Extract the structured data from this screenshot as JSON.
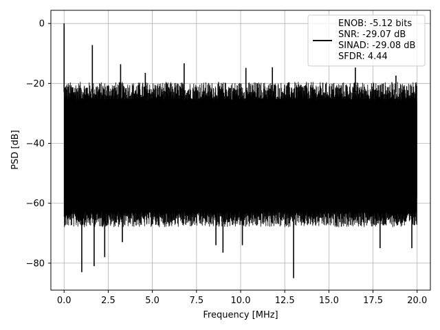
{
  "chart_data": {
    "type": "line",
    "title": "",
    "xlabel": "Frequency [MHz]",
    "ylabel": "PSD [dB]",
    "xlim": [
      -0.75,
      20.75
    ],
    "ylim": [
      -89.0,
      4.4
    ],
    "xticks": [
      0.0,
      2.5,
      5.0,
      7.5,
      10.0,
      12.5,
      15.0,
      17.5,
      20.0
    ],
    "xtick_labels": [
      "0.0",
      "2.5",
      "5.0",
      "7.5",
      "10.0",
      "12.5",
      "15.0",
      "17.5",
      "20.0"
    ],
    "yticks": [
      0,
      -20,
      -40,
      -60,
      -80
    ],
    "ytick_labels": [
      "0",
      "−20",
      "−40",
      "−60",
      "−80"
    ],
    "grid": true,
    "legend_position": "top-right",
    "legend_lines": [
      "ENOB: -5.12 bits",
      "SNR: -29.07 dB",
      "SINAD: -29.08 dB",
      "SFDR: 4.44"
    ],
    "series": [
      {
        "color": "#000000",
        "envelope": {
          "x_range": [
            0.0,
            20.0
          ],
          "upper_floor_db": -23,
          "lower_floor_db": -63,
          "dense_band_db": [
            -58,
            -26
          ]
        },
        "peaks": [
          {
            "x": 0.0,
            "y": 0.0
          },
          {
            "x": 1.6,
            "y": -7.2
          },
          {
            "x": 3.2,
            "y": -13.6
          },
          {
            "x": 4.6,
            "y": -16.5
          },
          {
            "x": 6.8,
            "y": -13.3
          },
          {
            "x": 10.3,
            "y": -14.8
          },
          {
            "x": 11.8,
            "y": -14.6
          },
          {
            "x": 16.5,
            "y": -14.7
          },
          {
            "x": 18.8,
            "y": -17.4
          }
        ],
        "dips": [
          {
            "x": 1.0,
            "y": -83.0
          },
          {
            "x": 1.7,
            "y": -81.0
          },
          {
            "x": 2.3,
            "y": -78.0
          },
          {
            "x": 3.3,
            "y": -73.0
          },
          {
            "x": 8.6,
            "y": -74.0
          },
          {
            "x": 9.0,
            "y": -76.5
          },
          {
            "x": 10.1,
            "y": -74.0
          },
          {
            "x": 13.0,
            "y": -85.0
          },
          {
            "x": 17.9,
            "y": -75.0
          },
          {
            "x": 19.7,
            "y": -75.0
          }
        ]
      }
    ]
  }
}
